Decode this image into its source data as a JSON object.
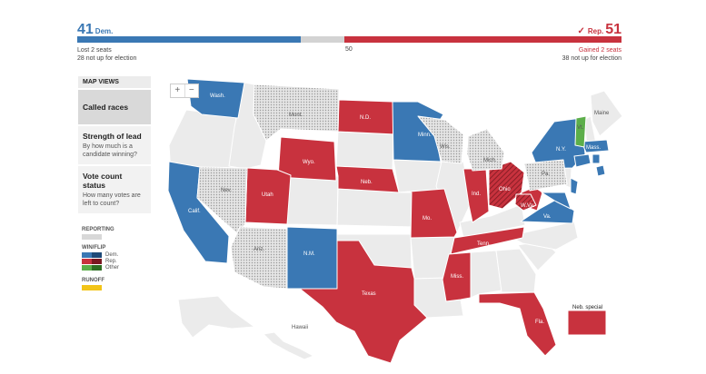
{
  "tally": {
    "dem_count": "41",
    "dem_label": "Dem.",
    "rep_count": "51",
    "rep_label": "Rep.",
    "dem_change": "Lost 2 seats",
    "dem_not_up": "28 not up for election",
    "rep_change": "Gained 2 seats",
    "rep_not_up": "38 not up for election",
    "majority_label": "50",
    "dem_seats": 41,
    "rep_seats": 51,
    "total_seats": 100,
    "colors": {
      "dem": "#3a78b4",
      "rep": "#c8323e",
      "undecided": "#d3d3d3"
    }
  },
  "panel": {
    "header": "MAP VIEWS",
    "items": [
      {
        "title": "Called races",
        "desc": ""
      },
      {
        "title": "Strength of lead",
        "desc": "By how much is a candidate winning?"
      },
      {
        "title": "Vote count status",
        "desc": "How many votes are left to count?"
      }
    ]
  },
  "legend": {
    "reporting_title": "REPORTING",
    "win_title": "WIN/FLIP",
    "dem": "Dem.",
    "rep": "Rep.",
    "other": "Other",
    "runoff_title": "RUNOFF",
    "runoff_color": "#f2c418",
    "other_color": "#5cae4a"
  },
  "zoom": {
    "plus": "+",
    "minus": "−"
  },
  "states": {
    "wash": "Wash.",
    "mont": "Mont.",
    "nd": "N.D.",
    "minn": "Minn.",
    "wis": "Wis.",
    "mich": "Mich.",
    "maine": "Maine",
    "vt": "Vt.",
    "mass": "Mass.",
    "ny": "N.Y.",
    "pa": "Pa.",
    "ohio": "Ohio",
    "ind": "Ind.",
    "wva": "W.Va.",
    "va": "Va.",
    "wyo": "Wyo.",
    "neb": "Neb.",
    "nev": "Nev.",
    "utah": "Utah",
    "calif": "Calif.",
    "ariz": "Ariz.",
    "nm": "N.M.",
    "mo": "Mo.",
    "tenn": "Tenn.",
    "miss": "Miss.",
    "texas": "Texas",
    "fla": "Fla.",
    "hawaii": "Hawaii",
    "neb_special": "Neb. special"
  }
}
